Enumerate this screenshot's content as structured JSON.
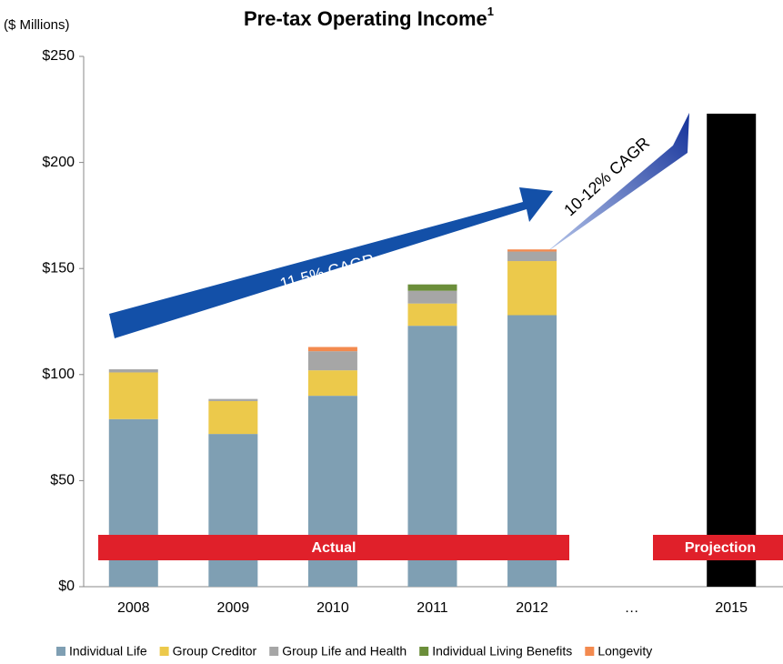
{
  "chart_data": {
    "type": "stacked_bar",
    "title": "Pre-tax Operating Income",
    "title_footnote": "1",
    "y_axis_label": "($ Millions)",
    "categories": [
      "2008",
      "2009",
      "2010",
      "2011",
      "2012",
      "…",
      "2015"
    ],
    "series": [
      {
        "name": "Individual Life",
        "color": "#7f9fb3",
        "values": [
          79,
          72,
          90,
          123,
          128,
          null,
          null
        ]
      },
      {
        "name": "Group Creditor",
        "color": "#ecc94b",
        "values": [
          22,
          15.5,
          12,
          10.5,
          25.5,
          null,
          null
        ]
      },
      {
        "name": "Group Life and Health",
        "color": "#a6a6a6",
        "values": [
          1.5,
          1,
          9,
          6,
          4.5,
          null,
          null
        ]
      },
      {
        "name": "Individual Living Benefits",
        "color": "#6b8e3a",
        "values": [
          0,
          0,
          0,
          3,
          0,
          null,
          null
        ]
      },
      {
        "name": "Longevity",
        "color": "#f38a4f",
        "values": [
          0,
          0,
          2,
          0,
          1,
          null,
          null
        ]
      },
      {
        "color": "#000000",
        "values": [
          null,
          null,
          null,
          null,
          null,
          null,
          223
        ]
      }
    ],
    "ylim": [
      0,
      250
    ],
    "yticks": [
      {
        "value": 0,
        "label": "$0"
      },
      {
        "value": 50,
        "label": "$50"
      },
      {
        "value": 100,
        "label": "$100"
      },
      {
        "value": 150,
        "label": "$150"
      },
      {
        "value": 200,
        "label": "$200"
      },
      {
        "value": 250,
        "label": "$250"
      }
    ],
    "grid": false,
    "legend": "bottom",
    "annotations": [
      "11.5% CAGR",
      "10-12% CAGR",
      "Actual",
      "Projection"
    ]
  }
}
